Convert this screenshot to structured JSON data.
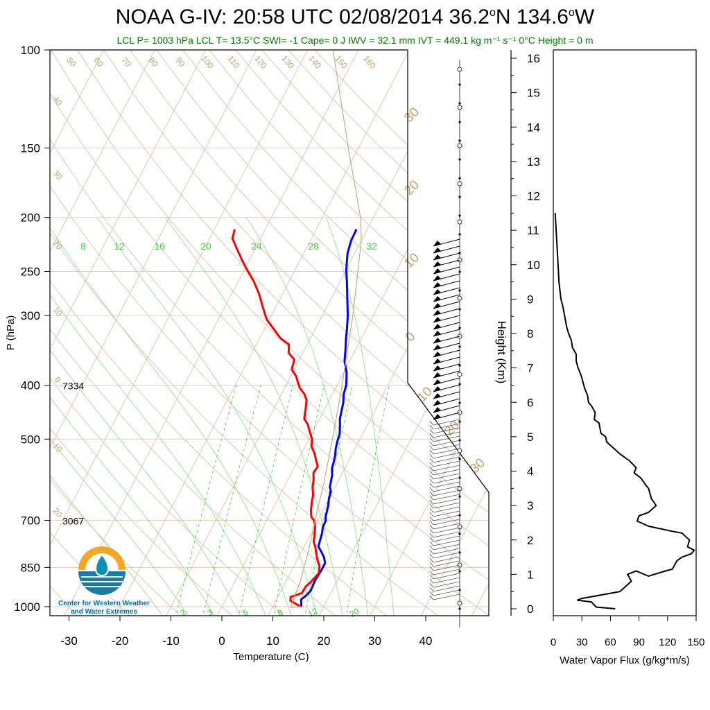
{
  "chart_data": [
    {
      "type": "skew-t",
      "title": "NOAA G-IV: 20:58 UTC 02/08/2014  36.2°N 134.6°W",
      "title_parts": {
        "main": "NOAA G-IV: 20:58 UTC 02/08/2014  36.2",
        "lat_unit": "N 134.6",
        "lon_unit": "W"
      },
      "subtitle": "LCL P= 1003 hPa  LCL T= 13.5°C  SWI= -1  Cape= 0 J  IWV = 32.1 mm  IVT = 449.1 kg m⁻¹ s⁻¹  0°C Height = 0 m",
      "xlabel": "Temperature (C)",
      "ylabel": "P (hPa)",
      "x_ticks": [
        "-30",
        "-20",
        "-10",
        "0",
        "10",
        "20",
        "30",
        "40"
      ],
      "y_ticks": [
        "100",
        "150",
        "200",
        "250",
        "300",
        "400",
        "500",
        "700",
        "850",
        "1000"
      ],
      "height_annotations": [
        {
          "pressure": 400,
          "label": "7334"
        },
        {
          "pressure": 700,
          "label": "3067"
        }
      ],
      "mixing_ratio_labels": [
        "8",
        "12",
        "16",
        "20",
        "24",
        "28",
        "32"
      ],
      "lower_mixing_labels": [
        "2",
        "3",
        "5",
        "8",
        "12",
        "20"
      ],
      "dry_adiabat_labels": [
        "50",
        "60",
        "70",
        "80",
        "90",
        "100",
        "110",
        "120",
        "130",
        "140",
        "150",
        "160"
      ],
      "left_isotherm_labels": [
        "40",
        "30",
        "20",
        "10",
        "0",
        "10",
        "20"
      ],
      "right_isotherm_labels": [
        "30",
        "20",
        "10",
        "0",
        "10",
        "20",
        "30"
      ],
      "series": [
        {
          "name": "Temperature",
          "color": "#0000ff",
          "points": [
            [
              15.6,
              1000
            ],
            [
              15.2,
              985
            ],
            [
              14.8,
              970
            ],
            [
              15.4,
              955
            ],
            [
              15.8,
              935
            ],
            [
              15.6,
              900
            ],
            [
              15.8,
              860
            ],
            [
              15.8,
              835
            ],
            [
              15.0,
              815
            ],
            [
              13.8,
              795
            ],
            [
              12.8,
              780
            ],
            [
              12.5,
              760
            ],
            [
              12.2,
              740
            ],
            [
              11.7,
              720
            ],
            [
              11.6,
              700
            ],
            [
              11.2,
              690
            ],
            [
              10.8,
              670
            ],
            [
              10.6,
              660
            ],
            [
              10.0,
              640
            ],
            [
              9.6,
              620
            ],
            [
              9.0,
              610
            ],
            [
              8.6,
              595
            ],
            [
              8.2,
              580
            ],
            [
              7.5,
              565
            ],
            [
              7.2,
              550
            ],
            [
              6.8,
              535
            ],
            [
              6.2,
              520
            ],
            [
              5.8,
              505
            ],
            [
              5.5,
              490
            ],
            [
              4.8,
              475
            ],
            [
              4.0,
              460
            ],
            [
              3.5,
              445
            ],
            [
              3.0,
              430
            ],
            [
              2.2,
              415
            ],
            [
              1.8,
              400
            ],
            [
              0.6,
              380
            ],
            [
              -1.0,
              362
            ],
            [
              -2.0,
              345
            ],
            [
              -3.0,
              330
            ],
            [
              -3.8,
              317
            ],
            [
              -5.0,
              300
            ],
            [
              -6.8,
              280
            ],
            [
              -8.5,
              262
            ],
            [
              -10.0,
              248
            ],
            [
              -11.4,
              232
            ],
            [
              -12.0,
              220
            ],
            [
              -12.1,
              210
            ]
          ]
        },
        {
          "name": "Dewpoint",
          "color": "#ff0000",
          "points": [
            [
              15.6,
              1000
            ],
            [
              14.4,
              990
            ],
            [
              12.8,
              975
            ],
            [
              12.5,
              960
            ],
            [
              13.2,
              955
            ],
            [
              14.3,
              945
            ],
            [
              14.4,
              920
            ],
            [
              15.0,
              900
            ],
            [
              15.6,
              870
            ],
            [
              15.0,
              845
            ],
            [
              14.0,
              825
            ],
            [
              13.0,
              800
            ],
            [
              12.2,
              780
            ],
            [
              11.4,
              765
            ],
            [
              10.9,
              745
            ],
            [
              10.2,
              720
            ],
            [
              9.3,
              700
            ],
            [
              8.4,
              690
            ],
            [
              7.6,
              670
            ],
            [
              7.0,
              650
            ],
            [
              6.5,
              630
            ],
            [
              5.6,
              610
            ],
            [
              5.0,
              590
            ],
            [
              4.3,
              575
            ],
            [
              4.5,
              560
            ],
            [
              3.5,
              545
            ],
            [
              2.5,
              530
            ],
            [
              1.2,
              515
            ],
            [
              0.6,
              500
            ],
            [
              -0.6,
              485
            ],
            [
              -1.8,
              470
            ],
            [
              -3.0,
              460
            ],
            [
              -3.8,
              440
            ],
            [
              -4.5,
              425
            ],
            [
              -5.5,
              415
            ],
            [
              -7.0,
              405
            ],
            [
              -8.0,
              395
            ],
            [
              -9.0,
              385
            ],
            [
              -10.5,
              375
            ],
            [
              -11.0,
              360
            ],
            [
              -12.8,
              350
            ],
            [
              -13.6,
              338
            ],
            [
              -15.8,
              330
            ],
            [
              -18.0,
              318
            ],
            [
              -20.5,
              305
            ],
            [
              -22.5,
              290
            ],
            [
              -24.5,
              275
            ],
            [
              -27.0,
              260
            ],
            [
              -29.5,
              248
            ],
            [
              -31.5,
              238
            ],
            [
              -33.5,
              228
            ],
            [
              -35.5,
              218
            ],
            [
              -36.0,
              210
            ]
          ]
        },
        {
          "name": "Parcel",
          "color": "#c8a886",
          "points": [
            [
              15.6,
              1000
            ],
            [
              13.5,
              1003
            ],
            [
              12.8,
              900
            ],
            [
              11.4,
              800
            ],
            [
              9.5,
              700
            ],
            [
              7.4,
              600
            ],
            [
              4.6,
              500
            ],
            [
              1.0,
              400
            ],
            [
              -4.0,
              300
            ],
            [
              -10.0,
              220
            ],
            [
              -12.5,
              200
            ],
            [
              -22.0,
              150
            ],
            [
              -35.0,
              100
            ]
          ]
        }
      ],
      "wind_barb_column": "right of profile"
    },
    {
      "type": "line",
      "ylabel": "Height (Km)",
      "xlabel": "Water Vapor Flux (g/kg*m/s)",
      "x_ticks": [
        "0",
        "30",
        "60",
        "90",
        "120",
        "150"
      ],
      "y_ticks": [
        "0",
        "1",
        "2",
        "3",
        "4",
        "5",
        "6",
        "7",
        "8",
        "9",
        "10",
        "11",
        "12",
        "13",
        "14",
        "15",
        "16"
      ],
      "xlim": [
        0,
        150
      ],
      "ylim": [
        0,
        16.3
      ],
      "series": [
        {
          "name": "Water Vapor Flux",
          "color": "#000000",
          "points": [
            [
              65,
              0.0
            ],
            [
              45,
              0.05
            ],
            [
              40,
              0.2
            ],
            [
              25,
              0.25
            ],
            [
              30,
              0.3
            ],
            [
              50,
              0.4
            ],
            [
              70,
              0.5
            ],
            [
              82,
              0.8
            ],
            [
              78,
              1.0
            ],
            [
              87,
              1.1
            ],
            [
              100,
              0.95
            ],
            [
              118,
              1.1
            ],
            [
              125,
              1.15
            ],
            [
              130,
              1.4
            ],
            [
              135,
              1.5
            ],
            [
              145,
              1.6
            ],
            [
              148,
              1.7
            ],
            [
              141,
              1.8
            ],
            [
              143,
              2.0
            ],
            [
              135,
              2.2
            ],
            [
              125,
              2.25
            ],
            [
              100,
              2.4
            ],
            [
              88,
              2.55
            ],
            [
              90,
              2.7
            ],
            [
              100,
              2.8
            ],
            [
              108,
              3.0
            ],
            [
              103,
              3.2
            ],
            [
              100,
              3.5
            ],
            [
              97,
              3.6
            ],
            [
              92,
              3.8
            ],
            [
              85,
              3.95
            ],
            [
              87,
              4.1
            ],
            [
              80,
              4.3
            ],
            [
              70,
              4.5
            ],
            [
              60,
              4.75
            ],
            [
              56,
              4.85
            ],
            [
              55,
              5.0
            ],
            [
              50,
              5.1
            ],
            [
              48,
              5.4
            ],
            [
              43,
              5.5
            ],
            [
              44,
              5.7
            ],
            [
              40,
              5.9
            ],
            [
              37,
              6.0
            ],
            [
              36,
              6.2
            ],
            [
              33,
              6.4
            ],
            [
              31,
              6.6
            ],
            [
              29,
              6.8
            ],
            [
              26,
              7.0
            ],
            [
              24,
              7.2
            ],
            [
              24,
              7.4
            ],
            [
              20,
              7.6
            ],
            [
              19,
              7.8
            ],
            [
              16,
              8.0
            ],
            [
              14,
              8.2
            ],
            [
              12,
              8.5
            ],
            [
              10,
              8.8
            ],
            [
              8,
              9.0
            ],
            [
              6,
              9.5
            ],
            [
              5,
              10.0
            ],
            [
              4,
              10.5
            ],
            [
              3,
              11.0
            ],
            [
              2,
              11.5
            ]
          ]
        }
      ]
    }
  ],
  "logo": {
    "text_line1": "Center for Western Weather",
    "text_line2": "and Water Extremes",
    "colors": {
      "orange": "#f5a623",
      "blue": "#1b7aa6",
      "teal": "#0f8fb3"
    }
  }
}
